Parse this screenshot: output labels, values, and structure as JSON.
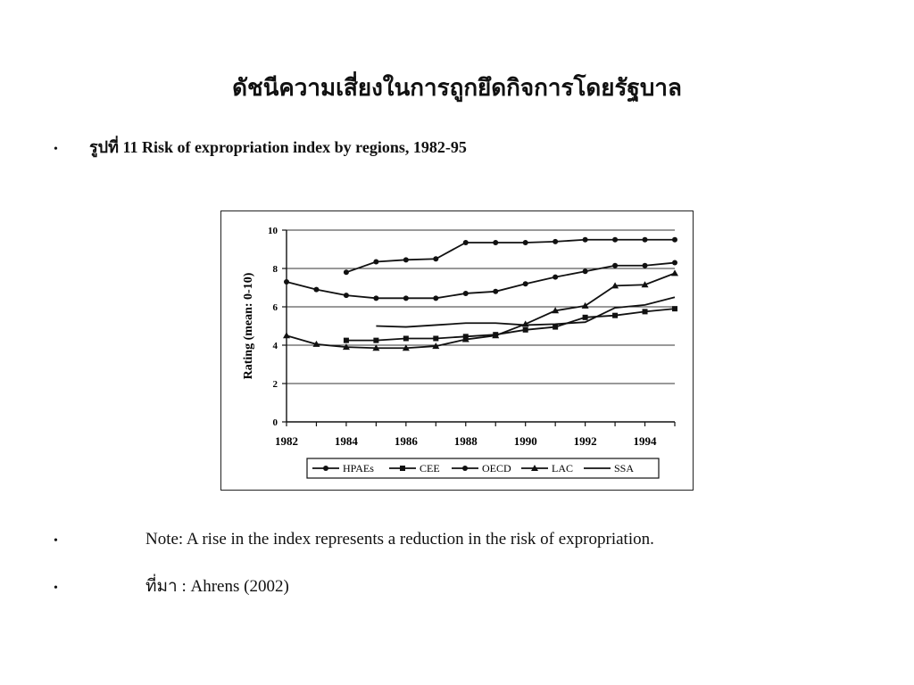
{
  "slide": {
    "title": "ดัชนีความเสี่ยงในการถูกยึดกิจการโดยรัฐบาล",
    "figure_caption": "รูปที่ 11 Risk of expropriation index by regions, 1982-95",
    "note": "Note: A rise in the index represents a reduction in the risk of expropriation.",
    "source": "ที่มา : Ahrens (2002)",
    "bullet_glyph": "•"
  },
  "chart_data": {
    "type": "line",
    "ylabel": "Rating (mean: 0-10)",
    "xlabel": "",
    "ylim": [
      0,
      10
    ],
    "xlim": [
      1982,
      1995
    ],
    "y_ticks": [
      0,
      2,
      4,
      6,
      8,
      10
    ],
    "x_ticks": [
      1982,
      1984,
      1986,
      1988,
      1990,
      1992,
      1994
    ],
    "grid": "horizontal",
    "legend_position": "bottom",
    "series": [
      {
        "name": "HPAEs",
        "marker": "circle",
        "x": [
          1984,
          1985,
          1986,
          1987,
          1988,
          1989,
          1990,
          1991,
          1992,
          1993,
          1994,
          1995
        ],
        "y": [
          7.8,
          8.35,
          8.45,
          8.5,
          9.35,
          9.35,
          9.35,
          9.4,
          9.5,
          9.5,
          9.5,
          9.5
        ]
      },
      {
        "name": "CEE",
        "marker": "square",
        "x": [
          1984,
          1985,
          1986,
          1987,
          1988,
          1989,
          1990,
          1991,
          1992,
          1993,
          1994,
          1995
        ],
        "y": [
          4.25,
          4.25,
          4.35,
          4.35,
          4.45,
          4.55,
          4.8,
          4.95,
          5.45,
          5.55,
          5.75,
          5.9
        ]
      },
      {
        "name": "OECD",
        "marker": "circle",
        "x": [
          1982,
          1983,
          1984,
          1985,
          1986,
          1987,
          1988,
          1989,
          1990,
          1991,
          1992,
          1993,
          1994,
          1995
        ],
        "y": [
          7.3,
          6.9,
          6.6,
          6.45,
          6.45,
          6.45,
          6.7,
          6.8,
          7.2,
          7.55,
          7.85,
          8.15,
          8.15,
          8.3
        ]
      },
      {
        "name": "LAC",
        "marker": "triangle",
        "x": [
          1982,
          1983,
          1984,
          1985,
          1986,
          1987,
          1988,
          1989,
          1990,
          1991,
          1992,
          1993,
          1994,
          1995
        ],
        "y": [
          4.5,
          4.05,
          3.9,
          3.85,
          3.85,
          3.95,
          4.3,
          4.5,
          5.1,
          5.8,
          6.05,
          7.1,
          7.15,
          7.75
        ]
      },
      {
        "name": "SSA",
        "marker": "none",
        "x": [
          1985,
          1986,
          1987,
          1988,
          1989,
          1990,
          1991,
          1992,
          1993,
          1994,
          1995
        ],
        "y": [
          5.0,
          4.95,
          5.05,
          5.15,
          5.15,
          5.05,
          5.1,
          5.2,
          5.95,
          6.1,
          6.5
        ]
      }
    ]
  }
}
